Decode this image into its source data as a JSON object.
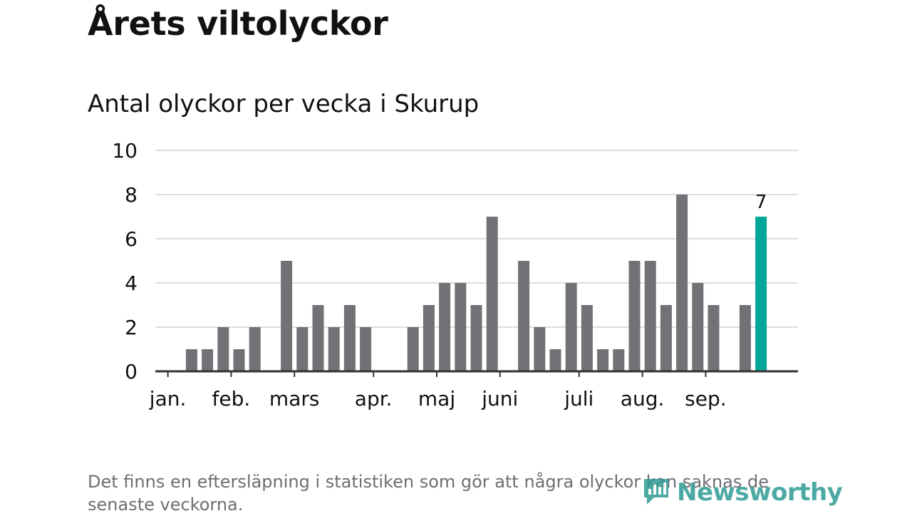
{
  "title": "Årets viltolyckor",
  "subtitle": "Antal olyckor per vecka i Skurup",
  "footnote": "Det finns en eftersläpning i statistiken som gör att några olyckor kan saknas de senaste veckorna.",
  "brand": {
    "name": "Newsworthy",
    "icon": "bar-chart-logo-icon"
  },
  "colors": {
    "bar": "#727176",
    "highlight": "#00a697",
    "grid": "#dddddd",
    "axis": "#333333",
    "text": "#111111",
    "brand": "#2f9b95"
  },
  "chart_data": {
    "type": "bar",
    "ylim": [
      0,
      10
    ],
    "yticks": [
      0,
      2,
      4,
      6,
      8,
      10
    ],
    "grid": true,
    "month_labels": [
      {
        "label": "jan.",
        "week": 2
      },
      {
        "label": "feb.",
        "week": 6
      },
      {
        "label": "mars",
        "week": 10
      },
      {
        "label": "apr.",
        "week": 15
      },
      {
        "label": "maj",
        "week": 19
      },
      {
        "label": "juni",
        "week": 23
      },
      {
        "label": "juli",
        "week": 28
      },
      {
        "label": "aug.",
        "week": 32
      },
      {
        "label": "sep.",
        "week": 36
      }
    ],
    "weeks": [
      1,
      2,
      3,
      4,
      5,
      6,
      7,
      8,
      9,
      10,
      11,
      12,
      13,
      14,
      15,
      16,
      17,
      18,
      19,
      20,
      21,
      22,
      23,
      24,
      25,
      26,
      27,
      28,
      29,
      30,
      31,
      32,
      33,
      34,
      35,
      36,
      37,
      38
    ],
    "values": [
      0,
      0,
      1,
      1,
      2,
      1,
      2,
      0,
      5,
      2,
      3,
      2,
      3,
      2,
      0,
      0,
      2,
      3,
      4,
      4,
      3,
      7,
      0,
      5,
      2,
      1,
      4,
      3,
      1,
      1,
      5,
      5,
      3,
      8,
      4,
      3,
      0,
      3
    ],
    "highlight": {
      "week": 39,
      "value": 7,
      "label": "7"
    }
  }
}
